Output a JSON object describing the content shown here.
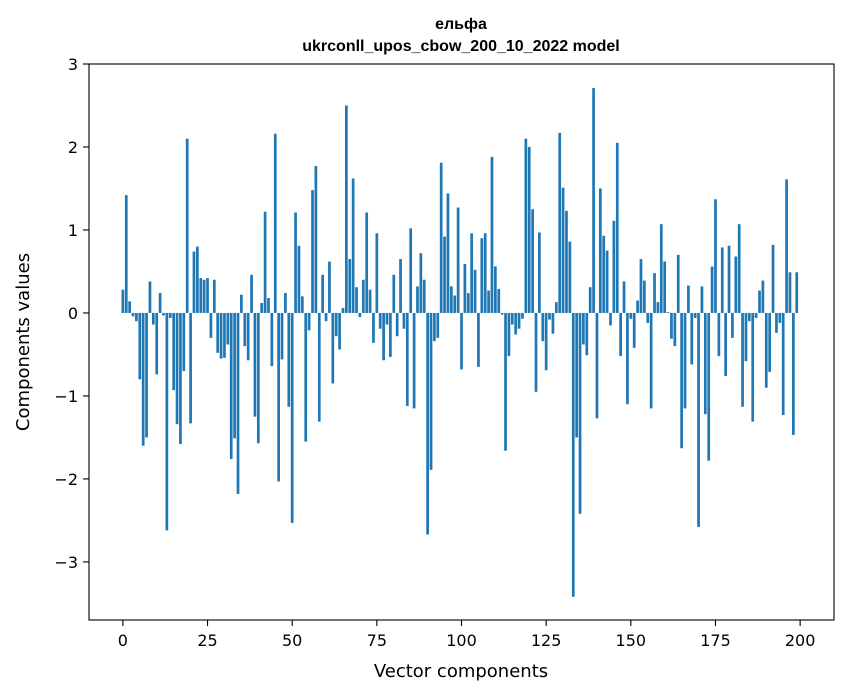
{
  "chart_data": {
    "type": "bar",
    "title": "ельфа",
    "subtitle": "ukrconll_upos_cbow_200_10_2022 model",
    "xlabel": "Vector components",
    "ylabel": "Components values",
    "xlim": [
      -10,
      210
    ],
    "ylim": [
      -3.7,
      3.0
    ],
    "xticks": [
      0,
      25,
      50,
      75,
      100,
      125,
      150,
      175,
      200
    ],
    "xtick_labels": [
      "0",
      "25",
      "50",
      "75",
      "100",
      "125",
      "150",
      "175",
      "200"
    ],
    "yticks": [
      3,
      2,
      1,
      0,
      -1,
      -2,
      -3
    ],
    "ytick_labels": [
      "3",
      "2",
      "1",
      "0",
      "−1",
      "−2",
      "−3"
    ],
    "grid": false,
    "color": "#1f77b4",
    "values": [
      0.28,
      1.42,
      0.14,
      -0.04,
      -0.1,
      -0.8,
      -1.6,
      -1.5,
      0.38,
      -0.14,
      -0.74,
      0.24,
      -0.03,
      -2.62,
      -0.06,
      -0.93,
      -1.34,
      -1.58,
      -0.7,
      2.1,
      -1.33,
      0.74,
      0.8,
      0.42,
      0.4,
      0.42,
      -0.3,
      0.4,
      -0.48,
      -0.55,
      -0.54,
      -0.38,
      -1.76,
      -1.51,
      -2.18,
      0.22,
      -0.4,
      -0.57,
      0.46,
      -1.25,
      -1.57,
      0.12,
      1.22,
      0.18,
      -0.64,
      2.16,
      -2.03,
      -0.56,
      0.24,
      -1.13,
      -2.53,
      1.21,
      0.81,
      0.2,
      -1.55,
      -0.21,
      1.48,
      1.77,
      -1.31,
      0.46,
      -0.1,
      0.62,
      -0.85,
      -0.28,
      -0.44,
      0.06,
      2.5,
      0.65,
      1.62,
      0.31,
      -0.05,
      0.4,
      1.21,
      0.28,
      -0.36,
      0.96,
      -0.19,
      -0.57,
      -0.14,
      -0.53,
      0.46,
      -0.28,
      0.65,
      -0.19,
      -1.12,
      1.02,
      -1.15,
      0.32,
      0.72,
      0.4,
      -2.67,
      -1.89,
      -0.34,
      -0.3,
      1.81,
      0.92,
      1.44,
      0.32,
      0.21,
      1.27,
      -0.68,
      0.59,
      0.24,
      0.96,
      0.52,
      -0.65,
      0.9,
      0.96,
      0.27,
      1.88,
      0.56,
      0.29,
      -0.02,
      -1.66,
      -0.52,
      -0.14,
      -0.26,
      -0.19,
      -0.07,
      2.1,
      2.0,
      1.25,
      -0.95,
      0.97,
      -0.34,
      -0.69,
      -0.08,
      -0.25,
      0.13,
      2.17,
      1.51,
      1.23,
      0.86,
      -3.42,
      -1.5,
      -2.42,
      -0.38,
      -0.51,
      0.31,
      2.71,
      -1.27,
      1.5,
      0.93,
      0.75,
      -0.15,
      1.11,
      2.05,
      -0.52,
      0.38,
      -1.1,
      -0.07,
      -0.42,
      0.15,
      0.65,
      0.39,
      -0.12,
      -1.15,
      0.48,
      0.13,
      1.07,
      0.62,
      0.01,
      -0.31,
      -0.4,
      0.7,
      -1.63,
      -1.15,
      0.33,
      -0.62,
      -0.06,
      -2.58,
      0.32,
      -1.22,
      -1.78,
      0.56,
      1.37,
      -0.52,
      0.79,
      -0.76,
      0.81,
      -0.3,
      0.68,
      1.07,
      -1.13,
      -0.58,
      -0.1,
      -1.31,
      -0.06,
      0.27,
      0.39,
      -0.9,
      -0.71,
      0.82,
      -0.24,
      -0.12,
      -1.23,
      1.61,
      0.49,
      -1.47,
      0.49
    ]
  }
}
